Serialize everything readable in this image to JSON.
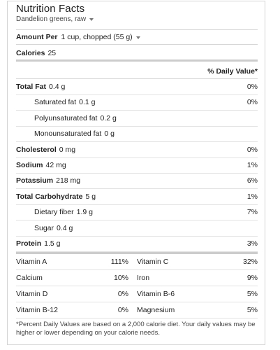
{
  "header": {
    "title": "Nutrition Facts",
    "food_name": "Dandelion greens, raw",
    "dropdown_icon": "caret-down-icon"
  },
  "serving": {
    "label": "Amount Per",
    "size": "1 cup, chopped (55 g)"
  },
  "calories": {
    "label": "Calories",
    "value": "25"
  },
  "daily_value_header": "% Daily Value*",
  "nutrients": [
    {
      "label": "Total Fat",
      "amount": "0.4 g",
      "pct": "0%",
      "bold": true,
      "indent": false
    },
    {
      "label": "Saturated fat",
      "amount": "0.1 g",
      "pct": "0%",
      "bold": false,
      "indent": true
    },
    {
      "label": "Polyunsaturated fat",
      "amount": "0.2 g",
      "pct": "",
      "bold": false,
      "indent": true
    },
    {
      "label": "Monounsaturated fat",
      "amount": "0 g",
      "pct": "",
      "bold": false,
      "indent": true
    },
    {
      "label": "Cholesterol",
      "amount": "0 mg",
      "pct": "0%",
      "bold": true,
      "indent": false
    },
    {
      "label": "Sodium",
      "amount": "42 mg",
      "pct": "1%",
      "bold": true,
      "indent": false
    },
    {
      "label": "Potassium",
      "amount": "218 mg",
      "pct": "6%",
      "bold": true,
      "indent": false
    },
    {
      "label": "Total Carbohydrate",
      "amount": "5 g",
      "pct": "1%",
      "bold": true,
      "indent": false
    },
    {
      "label": "Dietary fiber",
      "amount": "1.9 g",
      "pct": "7%",
      "bold": false,
      "indent": true
    },
    {
      "label": "Sugar",
      "amount": "0.4 g",
      "pct": "",
      "bold": false,
      "indent": true
    },
    {
      "label": "Protein",
      "amount": "1.5 g",
      "pct": "3%",
      "bold": true,
      "indent": false
    }
  ],
  "vitamins": [
    [
      {
        "name": "Vitamin A",
        "pct": "111%"
      },
      {
        "name": "Vitamin C",
        "pct": "32%"
      }
    ],
    [
      {
        "name": "Calcium",
        "pct": "10%"
      },
      {
        "name": "Iron",
        "pct": "9%"
      }
    ],
    [
      {
        "name": "Vitamin D",
        "pct": "0%"
      },
      {
        "name": "Vitamin B-6",
        "pct": "5%"
      }
    ],
    [
      {
        "name": "Vitamin B-12",
        "pct": "0%"
      },
      {
        "name": "Magnesium",
        "pct": "5%"
      }
    ]
  ],
  "footnote": "*Percent Daily Values are based on a 2,000 calorie diet. Your daily values may be higher or lower depending on your calorie needs."
}
